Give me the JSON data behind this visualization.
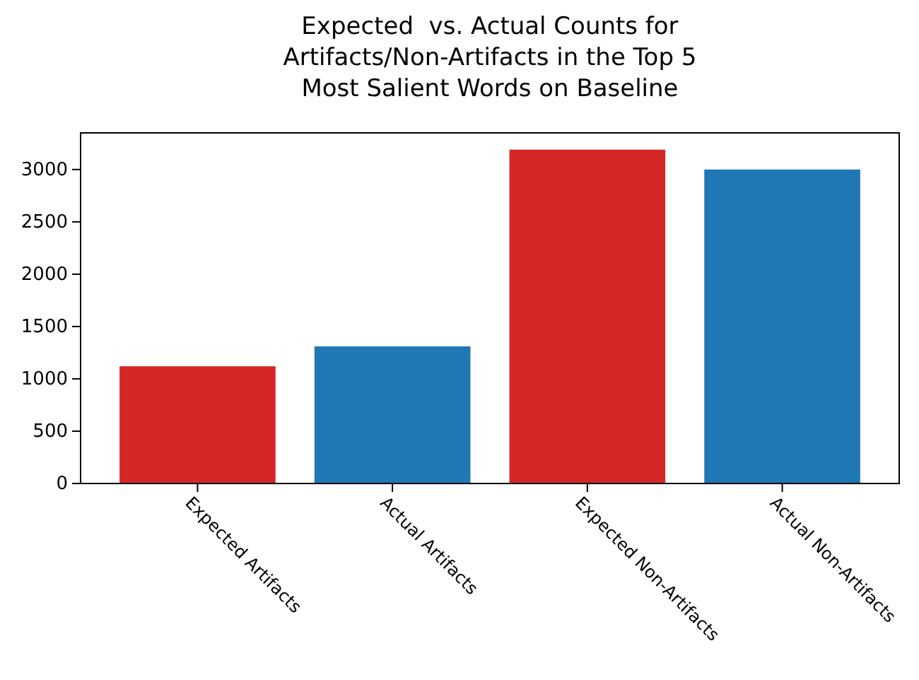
{
  "chart_data": {
    "type": "bar",
    "title": "Expected  vs. Actual Counts for\nArtifacts/Non-Artifacts in the Top 5\nMost Salient Words on Baseline",
    "categories": [
      "Expected Artifacts",
      "Actual Artifacts",
      "Expected Non-Artifacts",
      "Actual Non-Artifacts"
    ],
    "values": [
      1120,
      1310,
      3190,
      3000
    ],
    "colors": [
      "#d62728",
      "#1f77b4",
      "#d62728",
      "#1f77b4"
    ],
    "ylim": [
      0,
      3350
    ],
    "yticks": [
      0,
      500,
      1000,
      1500,
      2000,
      2500,
      3000
    ]
  }
}
